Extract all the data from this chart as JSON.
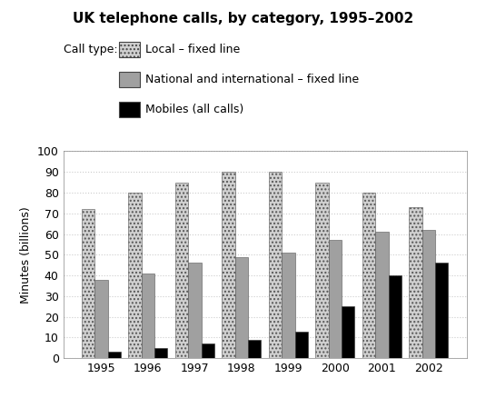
{
  "title": "UK telephone calls, by category, 1995–2002",
  "ylabel": "Minutes (billions)",
  "years": [
    1995,
    1996,
    1997,
    1998,
    1999,
    2000,
    2001,
    2002
  ],
  "local_fixed": [
    72,
    80,
    85,
    90,
    90,
    85,
    80,
    73
  ],
  "national_fixed": [
    38,
    41,
    46,
    49,
    51,
    57,
    61,
    62
  ],
  "mobiles": [
    3,
    5,
    7,
    9,
    13,
    25,
    40,
    46
  ],
  "ylim": [
    0,
    100
  ],
  "yticks": [
    0,
    10,
    20,
    30,
    40,
    50,
    60,
    70,
    80,
    90,
    100
  ],
  "legend_labels": [
    "Local – fixed line",
    "National and international – fixed line",
    "Mobiles (all calls)"
  ],
  "bar_width": 0.28,
  "call_type_label": "Call type:",
  "local_color": "#d0d0d0",
  "national_color": "#a0a0a0",
  "mobile_color": "#000000",
  "grid_color": "#cccccc",
  "background_color": "#ffffff"
}
